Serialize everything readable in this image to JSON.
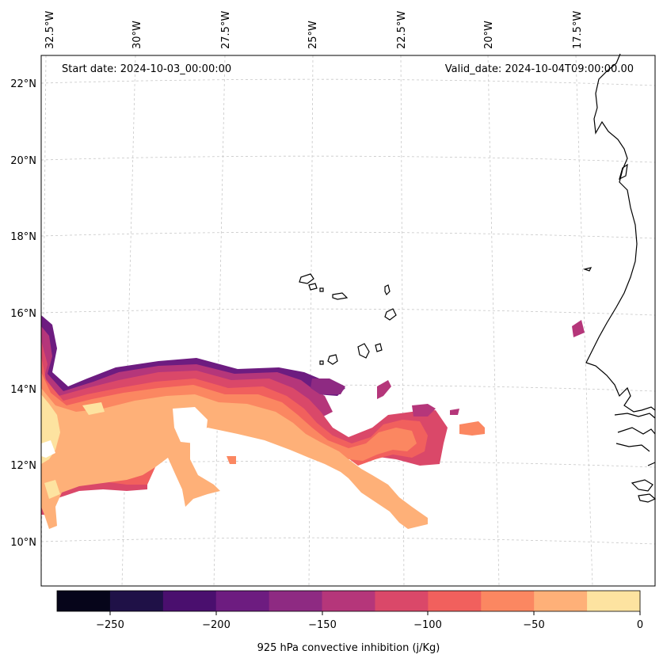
{
  "header": {
    "start_date": "Start date: 2024-10-03_00:00:00",
    "valid_date": "Valid_date: 2024-10-04T09:00:00.00"
  },
  "map": {
    "lon_labels": [
      "32.5°W",
      "30°W",
      "27.5°W",
      "25°W",
      "22.5°W",
      "20°W",
      "17.5°W"
    ],
    "lat_labels": [
      "22°N",
      "20°N",
      "18°N",
      "16°N",
      "14°N",
      "12°N",
      "10°N"
    ]
  },
  "colorbar": {
    "label": "925 hPa convective inhibition (j/Kg)",
    "ticks": [
      "−250",
      "−200",
      "−150",
      "−100",
      "−50",
      "0"
    ],
    "colors": [
      "#06051a",
      "#1f1147",
      "#4a0f6e",
      "#6d1c80",
      "#8e2a82",
      "#b5367a",
      "#da4869",
      "#f1605d",
      "#fb8761",
      "#feb078",
      "#fde3a0"
    ]
  }
}
